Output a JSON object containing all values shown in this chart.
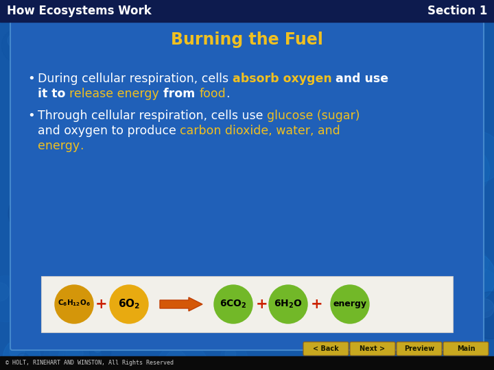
{
  "title_bar_text_left": "How Ecosystems Work",
  "title_bar_text_right": "Section 1",
  "title_bar_bg": "#0d1b4e",
  "slide_bg": "#2060b8",
  "slide_title": "Burning the Fuel",
  "slide_title_color": "#f0c020",
  "yellow": "#f0c020",
  "white": "#ffffff",
  "copyright_text": "© HOLT, RINEHART AND WINSTON, All Rights Reserved",
  "nav_buttons": [
    "< Back",
    "Next >",
    "Preview",
    "Main"
  ],
  "nav_bg": "#c8a820",
  "eq_bg": "#f2f0ea",
  "orange1": "#d4960a",
  "orange2": "#e8aa10",
  "green1": "#72b828",
  "arrow_color": "#d45808",
  "red_plus": "#cc2200",
  "outer_bg": "#1458a8"
}
